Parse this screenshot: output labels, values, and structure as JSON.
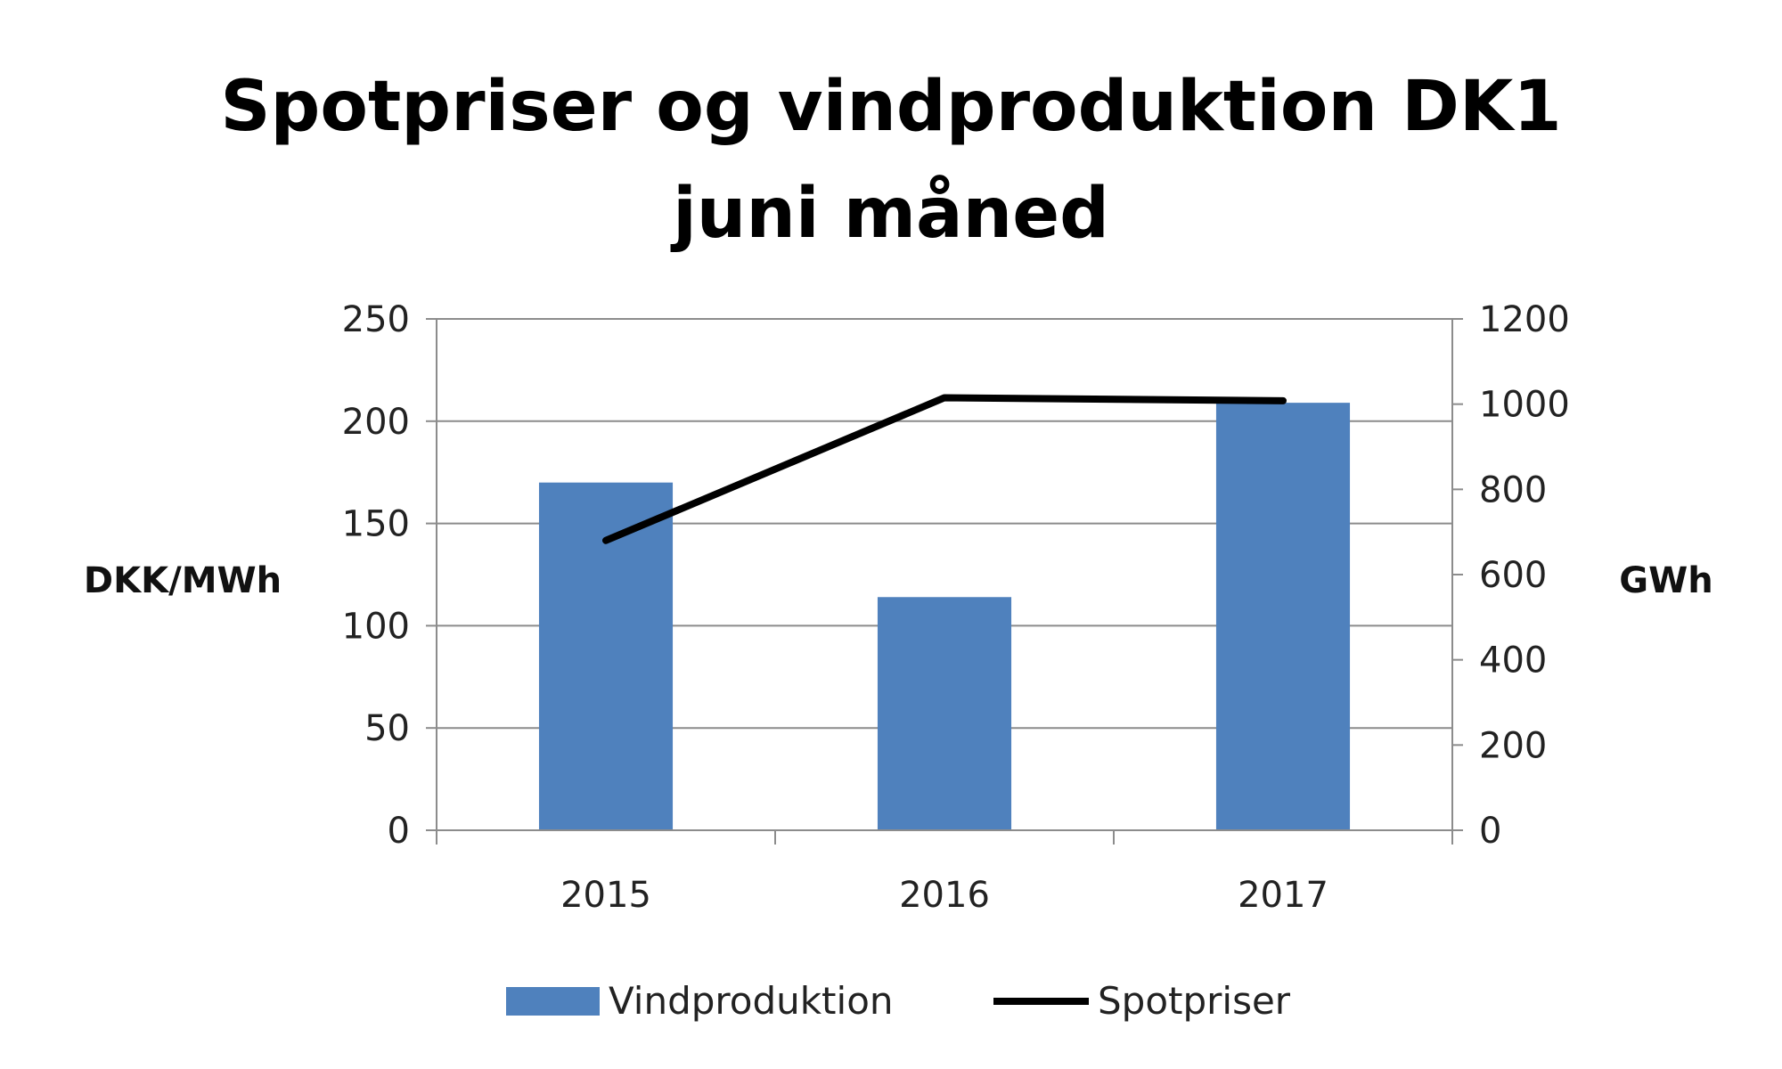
{
  "chart_data": {
    "type": "bar",
    "title_lines": [
      "Spotpriser og vindproduktion DK1",
      "juni måned"
    ],
    "categories": [
      "2015",
      "2016",
      "2017"
    ],
    "y_left": {
      "label": "DKK/MWh",
      "min": 0,
      "max": 250,
      "ticks": [
        0,
        50,
        100,
        150,
        200,
        250
      ]
    },
    "y_right": {
      "label": "GWh",
      "min": 0,
      "max": 1200,
      "ticks": [
        0,
        200,
        400,
        600,
        800,
        1000,
        1200
      ]
    },
    "series": [
      {
        "name": "Vindproduktion",
        "type": "bar",
        "axis": "left",
        "color": "#4f81bd",
        "values": [
          170,
          114,
          209
        ]
      },
      {
        "name": "Spotpriser",
        "type": "line",
        "axis": "right",
        "color": "#000000",
        "values": [
          680,
          1015,
          1008
        ]
      }
    ],
    "grid": true,
    "legend_position": "bottom"
  }
}
